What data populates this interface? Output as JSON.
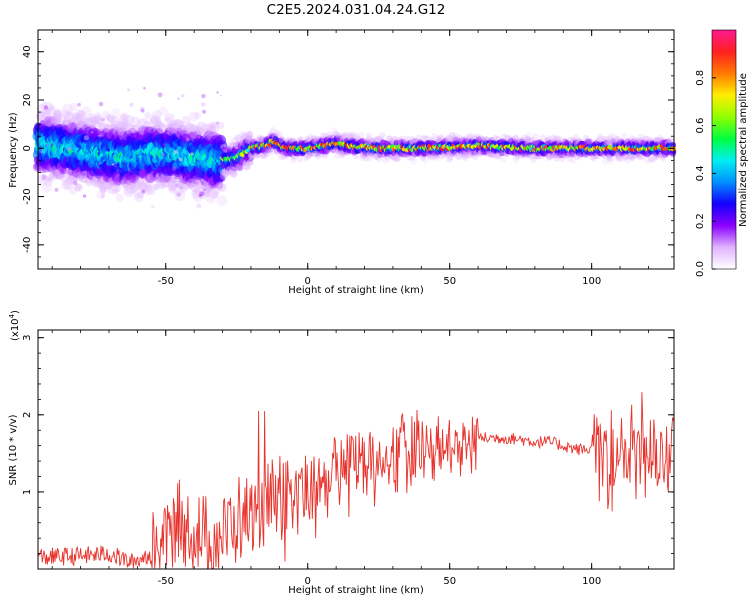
{
  "title": "C2E5.2024.031.04.24.G12",
  "colors": {
    "snr_line": "#e8322c",
    "axis": "#000000"
  },
  "chart_data": [
    {
      "type": "heatmap",
      "xlabel": "Height of straight line (km)",
      "ylabel": "Frequency (Hz)",
      "xlim": [
        -95,
        129
      ],
      "ylim": [
        -50,
        49
      ],
      "x_ticks": [
        -50,
        0,
        50,
        100
      ],
      "x_tick_labels": [
        "-50",
        "0",
        "50",
        "100"
      ],
      "y_ticks": [
        -40,
        -20,
        0,
        20,
        40
      ],
      "y_tick_labels": [
        "-40",
        "-20",
        "0",
        "20",
        "40"
      ],
      "ridge": {
        "description_points_x": [
          -95,
          -85,
          -75,
          -65,
          -55,
          -45,
          -38,
          -32,
          -25,
          -20,
          -15,
          -12,
          -8,
          -5,
          0,
          5,
          10,
          15,
          25,
          40,
          60,
          80,
          100,
          115,
          129
        ],
        "description_points_y": [
          2,
          0,
          -2,
          -4,
          -2,
          -3,
          -4,
          -5,
          -4,
          0,
          1,
          3,
          0,
          0,
          0,
          1,
          2,
          1,
          0,
          0,
          1,
          0,
          0,
          0,
          0
        ]
      },
      "colorbar": {
        "label": "Normalized spectral amplitude",
        "range": [
          0,
          1
        ],
        "ticks": [
          0.0,
          0.2,
          0.4,
          0.6,
          0.8
        ],
        "tick_labels": [
          "0.0",
          "0.2",
          "0.4",
          "0.6",
          "0.8"
        ],
        "colormap": [
          "#ffffff",
          "#e0b3ff",
          "#8a00ff",
          "#1400ff",
          "#0090ff",
          "#00f0f0",
          "#00ff40",
          "#90ff00",
          "#ffee00",
          "#ff7a00",
          "#ff2020",
          "#ff1a90"
        ]
      }
    },
    {
      "type": "line",
      "xlabel": "Height of straight line (km)",
      "ylabel": "SNR (10 * v/v)",
      "y_multiplier": "(x10",
      "y_multiplier_exp": "4",
      "y_multiplier_close": ")",
      "xlim": [
        -95,
        129
      ],
      "ylim": [
        0,
        3.1
      ],
      "x_ticks": [
        -50,
        0,
        50,
        100
      ],
      "x_tick_labels": [
        "-50",
        "0",
        "50",
        "100"
      ],
      "y_ticks": [
        1,
        2,
        3
      ],
      "y_tick_labels": [
        "1",
        "2",
        "3"
      ],
      "series": [
        {
          "envelope_x": [
            -95,
            -80,
            -70,
            -62,
            -55,
            -50,
            -45,
            -40,
            -35,
            -30,
            -25,
            -20,
            -15,
            -10,
            -5,
            0,
            5,
            10,
            15,
            20,
            25,
            30,
            35,
            40,
            45,
            50,
            55,
            60,
            65,
            70,
            75,
            80,
            85,
            90,
            95,
            100,
            105,
            110,
            115,
            120,
            125,
            129
          ],
          "envelope_y": [
            0.15,
            0.17,
            0.2,
            0.08,
            0.2,
            0.45,
            0.55,
            0.45,
            0.35,
            0.45,
            0.6,
            0.75,
            0.8,
            0.85,
            0.9,
            1.0,
            1.1,
            1.25,
            1.35,
            1.4,
            1.45,
            1.5,
            1.5,
            1.55,
            1.6,
            1.6,
            1.65,
            1.7,
            1.7,
            1.7,
            1.68,
            1.65,
            1.65,
            1.6,
            1.55,
            1.55,
            1.5,
            1.5,
            1.5,
            1.45,
            1.45,
            1.5
          ]
        }
      ]
    }
  ]
}
